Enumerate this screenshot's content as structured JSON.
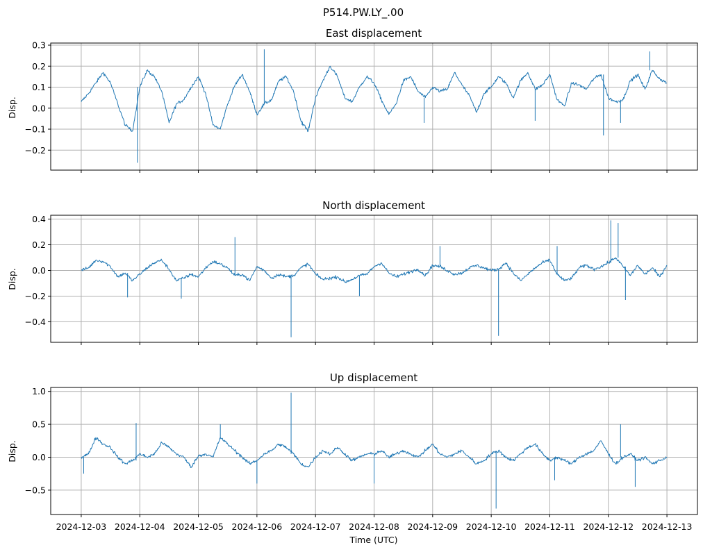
{
  "figure": {
    "suptitle": "P514.PW.LY_.00",
    "xlabel": "Time (UTC)"
  },
  "colors": {
    "line": "#1f77b4",
    "grid": "#b0b0b0",
    "frame": "#000000"
  },
  "chart_data": [
    {
      "type": "line",
      "title": "East displacement",
      "ylabel": "Disp.",
      "xlabel": "",
      "grid": true,
      "xlim": [
        "2024-12-02 11:30",
        "2024-12-13 12:30"
      ],
      "ylim": [
        -0.295,
        0.31
      ],
      "yticks": [
        -0.2,
        -0.1,
        0.0,
        0.1,
        0.2,
        0.3
      ],
      "ytick_labels": [
        "−0.2",
        "−0.1",
        "0.0",
        "0.1",
        "0.2",
        "0.3"
      ],
      "series": [
        {
          "x": [
            "2024-12-03 00:00",
            "2024-12-03 03:00",
            "2024-12-03 06:00",
            "2024-12-03 09:00",
            "2024-12-03 12:00",
            "2024-12-03 15:00",
            "2024-12-03 18:00",
            "2024-12-03 21:00",
            "2024-12-04 00:00",
            "2024-12-04 03:00",
            "2024-12-04 06:00",
            "2024-12-04 09:00",
            "2024-12-04 12:00",
            "2024-12-04 15:00",
            "2024-12-04 18:00",
            "2024-12-04 21:00",
            "2024-12-05 00:00",
            "2024-12-05 03:00",
            "2024-12-05 06:00",
            "2024-12-05 09:00",
            "2024-12-05 12:00",
            "2024-12-05 15:00",
            "2024-12-05 18:00",
            "2024-12-05 21:00",
            "2024-12-06 00:00",
            "2024-12-06 03:00",
            "2024-12-06 06:00",
            "2024-12-06 09:00",
            "2024-12-06 12:00",
            "2024-12-06 15:00",
            "2024-12-06 18:00",
            "2024-12-06 21:00",
            "2024-12-07 00:00",
            "2024-12-07 03:00",
            "2024-12-07 06:00",
            "2024-12-07 09:00",
            "2024-12-07 12:00",
            "2024-12-07 15:00",
            "2024-12-07 18:00",
            "2024-12-07 21:00",
            "2024-12-08 00:00",
            "2024-12-08 03:00",
            "2024-12-08 06:00",
            "2024-12-08 09:00",
            "2024-12-08 12:00",
            "2024-12-08 15:00",
            "2024-12-08 18:00",
            "2024-12-08 21:00",
            "2024-12-09 00:00",
            "2024-12-09 03:00",
            "2024-12-09 06:00",
            "2024-12-09 09:00",
            "2024-12-09 12:00",
            "2024-12-09 15:00",
            "2024-12-09 18:00",
            "2024-12-09 21:00",
            "2024-12-10 00:00",
            "2024-12-10 03:00",
            "2024-12-10 06:00",
            "2024-12-10 09:00",
            "2024-12-10 12:00",
            "2024-12-10 15:00",
            "2024-12-10 18:00",
            "2024-12-10 21:00",
            "2024-12-11 00:00",
            "2024-12-11 03:00",
            "2024-12-11 06:00",
            "2024-12-11 09:00",
            "2024-12-11 12:00",
            "2024-12-11 15:00",
            "2024-12-11 18:00",
            "2024-12-11 21:00",
            "2024-12-12 00:00",
            "2024-12-12 03:00",
            "2024-12-12 06:00",
            "2024-12-12 09:00",
            "2024-12-12 12:00",
            "2024-12-12 15:00",
            "2024-12-12 18:00",
            "2024-12-12 21:00",
            "2024-12-13 00:00"
          ],
          "y": [
            0.03,
            0.07,
            0.12,
            0.17,
            0.12,
            0.02,
            -0.08,
            -0.11,
            0.1,
            0.18,
            0.15,
            0.08,
            -0.07,
            0.02,
            0.04,
            0.1,
            0.15,
            0.07,
            -0.08,
            -0.1,
            0.02,
            0.11,
            0.16,
            0.08,
            -0.03,
            0.02,
            0.04,
            0.13,
            0.15,
            0.08,
            -0.06,
            -0.11,
            0.05,
            0.13,
            0.2,
            0.15,
            0.05,
            0.03,
            0.1,
            0.15,
            0.12,
            0.04,
            -0.03,
            0.02,
            0.13,
            0.15,
            0.08,
            0.05,
            0.1,
            0.08,
            0.09,
            0.17,
            0.11,
            0.06,
            -0.02,
            0.07,
            0.1,
            0.15,
            0.12,
            0.05,
            0.13,
            0.17,
            0.09,
            0.11,
            0.16,
            0.04,
            0.01,
            0.12,
            0.11,
            0.09,
            0.14,
            0.16,
            0.05,
            0.03,
            0.04,
            0.13,
            0.16,
            0.09,
            0.18,
            0.14,
            0.12
          ]
        }
      ],
      "spikes": [
        {
          "x": "2024-12-03 23:00",
          "y": -0.26
        },
        {
          "x": "2024-12-06 18:30",
          "y": -0.08
        },
        {
          "x": "2024-12-08 20:30",
          "y": -0.07
        },
        {
          "x": "2024-12-10 18:00",
          "y": -0.06
        },
        {
          "x": "2024-12-11 22:00",
          "y": -0.13
        },
        {
          "x": "2024-12-12 05:00",
          "y": -0.07
        },
        {
          "x": "2024-12-06 03:00",
          "y": 0.28
        },
        {
          "x": "2024-12-12 17:00",
          "y": 0.27
        }
      ]
    },
    {
      "type": "line",
      "title": "North displacement",
      "ylabel": "Disp.",
      "xlabel": "",
      "grid": true,
      "xlim": [
        "2024-12-02 11:30",
        "2024-12-13 12:30"
      ],
      "ylim": [
        -0.56,
        0.43
      ],
      "yticks": [
        -0.4,
        -0.2,
        0.0,
        0.2,
        0.4
      ],
      "ytick_labels": [
        "−0.4",
        "−0.2",
        "0.0",
        "0.2",
        "0.4"
      ],
      "series": [
        {
          "x": [
            "2024-12-03 00:00",
            "2024-12-03 03:00",
            "2024-12-03 06:00",
            "2024-12-03 09:00",
            "2024-12-03 12:00",
            "2024-12-03 15:00",
            "2024-12-03 18:00",
            "2024-12-03 21:00",
            "2024-12-04 00:00",
            "2024-12-04 03:00",
            "2024-12-04 06:00",
            "2024-12-04 09:00",
            "2024-12-04 12:00",
            "2024-12-04 15:00",
            "2024-12-04 18:00",
            "2024-12-04 21:00",
            "2024-12-05 00:00",
            "2024-12-05 03:00",
            "2024-12-05 06:00",
            "2024-12-05 09:00",
            "2024-12-05 12:00",
            "2024-12-05 15:00",
            "2024-12-05 18:00",
            "2024-12-05 21:00",
            "2024-12-06 00:00",
            "2024-12-06 03:00",
            "2024-12-06 06:00",
            "2024-12-06 09:00",
            "2024-12-06 12:00",
            "2024-12-06 15:00",
            "2024-12-06 18:00",
            "2024-12-06 21:00",
            "2024-12-07 00:00",
            "2024-12-07 03:00",
            "2024-12-07 06:00",
            "2024-12-07 09:00",
            "2024-12-07 12:00",
            "2024-12-07 15:00",
            "2024-12-07 18:00",
            "2024-12-07 21:00",
            "2024-12-08 00:00",
            "2024-12-08 03:00",
            "2024-12-08 06:00",
            "2024-12-08 09:00",
            "2024-12-08 12:00",
            "2024-12-08 15:00",
            "2024-12-08 18:00",
            "2024-12-08 21:00",
            "2024-12-09 00:00",
            "2024-12-09 03:00",
            "2024-12-09 06:00",
            "2024-12-09 09:00",
            "2024-12-09 12:00",
            "2024-12-09 15:00",
            "2024-12-09 18:00",
            "2024-12-09 21:00",
            "2024-12-10 00:00",
            "2024-12-10 03:00",
            "2024-12-10 06:00",
            "2024-12-10 09:00",
            "2024-12-10 12:00",
            "2024-12-10 15:00",
            "2024-12-10 18:00",
            "2024-12-10 21:00",
            "2024-12-11 00:00",
            "2024-12-11 03:00",
            "2024-12-11 06:00",
            "2024-12-11 09:00",
            "2024-12-11 12:00",
            "2024-12-11 15:00",
            "2024-12-11 18:00",
            "2024-12-11 21:00",
            "2024-12-12 00:00",
            "2024-12-12 03:00",
            "2024-12-12 06:00",
            "2024-12-12 09:00",
            "2024-12-12 12:00",
            "2024-12-12 15:00",
            "2024-12-12 18:00",
            "2024-12-12 21:00",
            "2024-12-13 00:00"
          ],
          "y": [
            0.0,
            0.02,
            0.08,
            0.07,
            0.03,
            -0.05,
            -0.02,
            -0.08,
            -0.03,
            0.02,
            0.06,
            0.08,
            0.01,
            -0.08,
            -0.06,
            -0.03,
            -0.05,
            0.02,
            0.07,
            0.05,
            0.02,
            -0.04,
            -0.03,
            -0.08,
            0.03,
            0.0,
            -0.06,
            -0.03,
            -0.05,
            -0.04,
            0.02,
            0.05,
            -0.03,
            -0.07,
            -0.06,
            -0.05,
            -0.09,
            -0.07,
            -0.04,
            -0.03,
            0.03,
            0.06,
            -0.02,
            -0.05,
            -0.03,
            -0.01,
            0.01,
            -0.04,
            0.04,
            0.03,
            0.0,
            -0.03,
            -0.02,
            0.02,
            0.04,
            0.02,
            0.0,
            0.01,
            0.06,
            -0.02,
            -0.08,
            -0.03,
            0.02,
            0.06,
            0.08,
            -0.03,
            -0.08,
            -0.06,
            0.02,
            0.04,
            0.01,
            0.03,
            0.06,
            0.1,
            0.03,
            -0.04,
            0.04,
            -0.03,
            0.02,
            -0.05,
            0.04
          ]
        }
      ],
      "spikes": [
        {
          "x": "2024-12-03 19:00",
          "y": -0.21
        },
        {
          "x": "2024-12-04 17:00",
          "y": -0.22
        },
        {
          "x": "2024-12-05 15:00",
          "y": 0.26
        },
        {
          "x": "2024-12-06 14:00",
          "y": -0.52
        },
        {
          "x": "2024-12-07 18:00",
          "y": -0.2
        },
        {
          "x": "2024-12-09 03:00",
          "y": 0.19
        },
        {
          "x": "2024-12-10 03:00",
          "y": -0.51
        },
        {
          "x": "2024-12-11 03:00",
          "y": 0.19
        },
        {
          "x": "2024-12-12 01:00",
          "y": 0.39
        },
        {
          "x": "2024-12-12 04:00",
          "y": 0.37
        },
        {
          "x": "2024-12-12 07:00",
          "y": -0.23
        }
      ]
    },
    {
      "type": "line",
      "title": "Up displacement",
      "ylabel": "Disp.",
      "xlabel": "Time (UTC)",
      "grid": true,
      "xlim": [
        "2024-12-02 11:30",
        "2024-12-13 12:30"
      ],
      "ylim": [
        -0.87,
        1.06
      ],
      "yticks": [
        -0.5,
        0.0,
        0.5,
        1.0
      ],
      "ytick_labels": [
        "−0.5",
        "0.0",
        "0.5",
        "1.0"
      ],
      "xticks": [
        "2024-12-03",
        "2024-12-04",
        "2024-12-05",
        "2024-12-06",
        "2024-12-07",
        "2024-12-08",
        "2024-12-09",
        "2024-12-10",
        "2024-12-11",
        "2024-12-12",
        "2024-12-13"
      ],
      "series": [
        {
          "x": [
            "2024-12-03 00:00",
            "2024-12-03 03:00",
            "2024-12-03 06:00",
            "2024-12-03 09:00",
            "2024-12-03 12:00",
            "2024-12-03 15:00",
            "2024-12-03 18:00",
            "2024-12-03 21:00",
            "2024-12-04 00:00",
            "2024-12-04 03:00",
            "2024-12-04 06:00",
            "2024-12-04 09:00",
            "2024-12-04 12:00",
            "2024-12-04 15:00",
            "2024-12-04 18:00",
            "2024-12-04 21:00",
            "2024-12-05 00:00",
            "2024-12-05 03:00",
            "2024-12-05 06:00",
            "2024-12-05 09:00",
            "2024-12-05 12:00",
            "2024-12-05 15:00",
            "2024-12-05 18:00",
            "2024-12-05 21:00",
            "2024-12-06 00:00",
            "2024-12-06 03:00",
            "2024-12-06 06:00",
            "2024-12-06 09:00",
            "2024-12-06 12:00",
            "2024-12-06 15:00",
            "2024-12-06 18:00",
            "2024-12-06 21:00",
            "2024-12-07 00:00",
            "2024-12-07 03:00",
            "2024-12-07 06:00",
            "2024-12-07 09:00",
            "2024-12-07 12:00",
            "2024-12-07 15:00",
            "2024-12-07 18:00",
            "2024-12-07 21:00",
            "2024-12-08 00:00",
            "2024-12-08 03:00",
            "2024-12-08 06:00",
            "2024-12-08 09:00",
            "2024-12-08 12:00",
            "2024-12-08 15:00",
            "2024-12-08 18:00",
            "2024-12-08 21:00",
            "2024-12-09 00:00",
            "2024-12-09 03:00",
            "2024-12-09 06:00",
            "2024-12-09 09:00",
            "2024-12-09 12:00",
            "2024-12-09 15:00",
            "2024-12-09 18:00",
            "2024-12-09 21:00",
            "2024-12-10 00:00",
            "2024-12-10 03:00",
            "2024-12-10 06:00",
            "2024-12-10 09:00",
            "2024-12-10 12:00",
            "2024-12-10 15:00",
            "2024-12-10 18:00",
            "2024-12-10 21:00",
            "2024-12-11 00:00",
            "2024-12-11 03:00",
            "2024-12-11 06:00",
            "2024-12-11 09:00",
            "2024-12-11 12:00",
            "2024-12-11 15:00",
            "2024-12-11 18:00",
            "2024-12-11 21:00",
            "2024-12-12 00:00",
            "2024-12-12 03:00",
            "2024-12-12 06:00",
            "2024-12-12 09:00",
            "2024-12-12 12:00",
            "2024-12-12 15:00",
            "2024-12-12 18:00",
            "2024-12-12 21:00",
            "2024-12-13 00:00"
          ],
          "y": [
            0.0,
            0.05,
            0.3,
            0.2,
            0.15,
            0.0,
            -0.1,
            -0.05,
            0.05,
            0.0,
            0.05,
            0.22,
            0.15,
            0.05,
            0.0,
            -0.15,
            0.02,
            0.05,
            0.0,
            0.3,
            0.2,
            0.1,
            0.0,
            -0.1,
            -0.05,
            0.05,
            0.1,
            0.2,
            0.15,
            0.05,
            -0.1,
            -0.15,
            0.0,
            0.1,
            0.05,
            0.15,
            0.05,
            -0.05,
            0.0,
            0.05,
            0.05,
            0.1,
            0.0,
            0.05,
            0.1,
            0.05,
            0.0,
            0.1,
            0.2,
            0.05,
            0.0,
            0.05,
            0.1,
            0.0,
            -0.1,
            -0.05,
            0.05,
            0.1,
            0.0,
            -0.05,
            0.05,
            0.15,
            0.2,
            0.05,
            -0.05,
            0.0,
            -0.05,
            -0.1,
            0.0,
            0.05,
            0.1,
            0.25,
            0.05,
            -0.1,
            0.0,
            0.05,
            -0.05,
            0.0,
            -0.1,
            -0.05,
            0.0
          ]
        }
      ],
      "spikes": [
        {
          "x": "2024-12-03 01:00",
          "y": -0.25
        },
        {
          "x": "2024-12-03 22:30",
          "y": 0.52
        },
        {
          "x": "2024-12-05 09:00",
          "y": 0.5
        },
        {
          "x": "2024-12-06 00:00",
          "y": -0.4
        },
        {
          "x": "2024-12-06 14:00",
          "y": 0.98
        },
        {
          "x": "2024-12-08 00:00",
          "y": -0.4
        },
        {
          "x": "2024-12-10 02:00",
          "y": -0.78
        },
        {
          "x": "2024-12-11 02:00",
          "y": -0.35
        },
        {
          "x": "2024-12-12 05:00",
          "y": 0.5
        },
        {
          "x": "2024-12-12 11:00",
          "y": -0.45
        }
      ]
    }
  ]
}
